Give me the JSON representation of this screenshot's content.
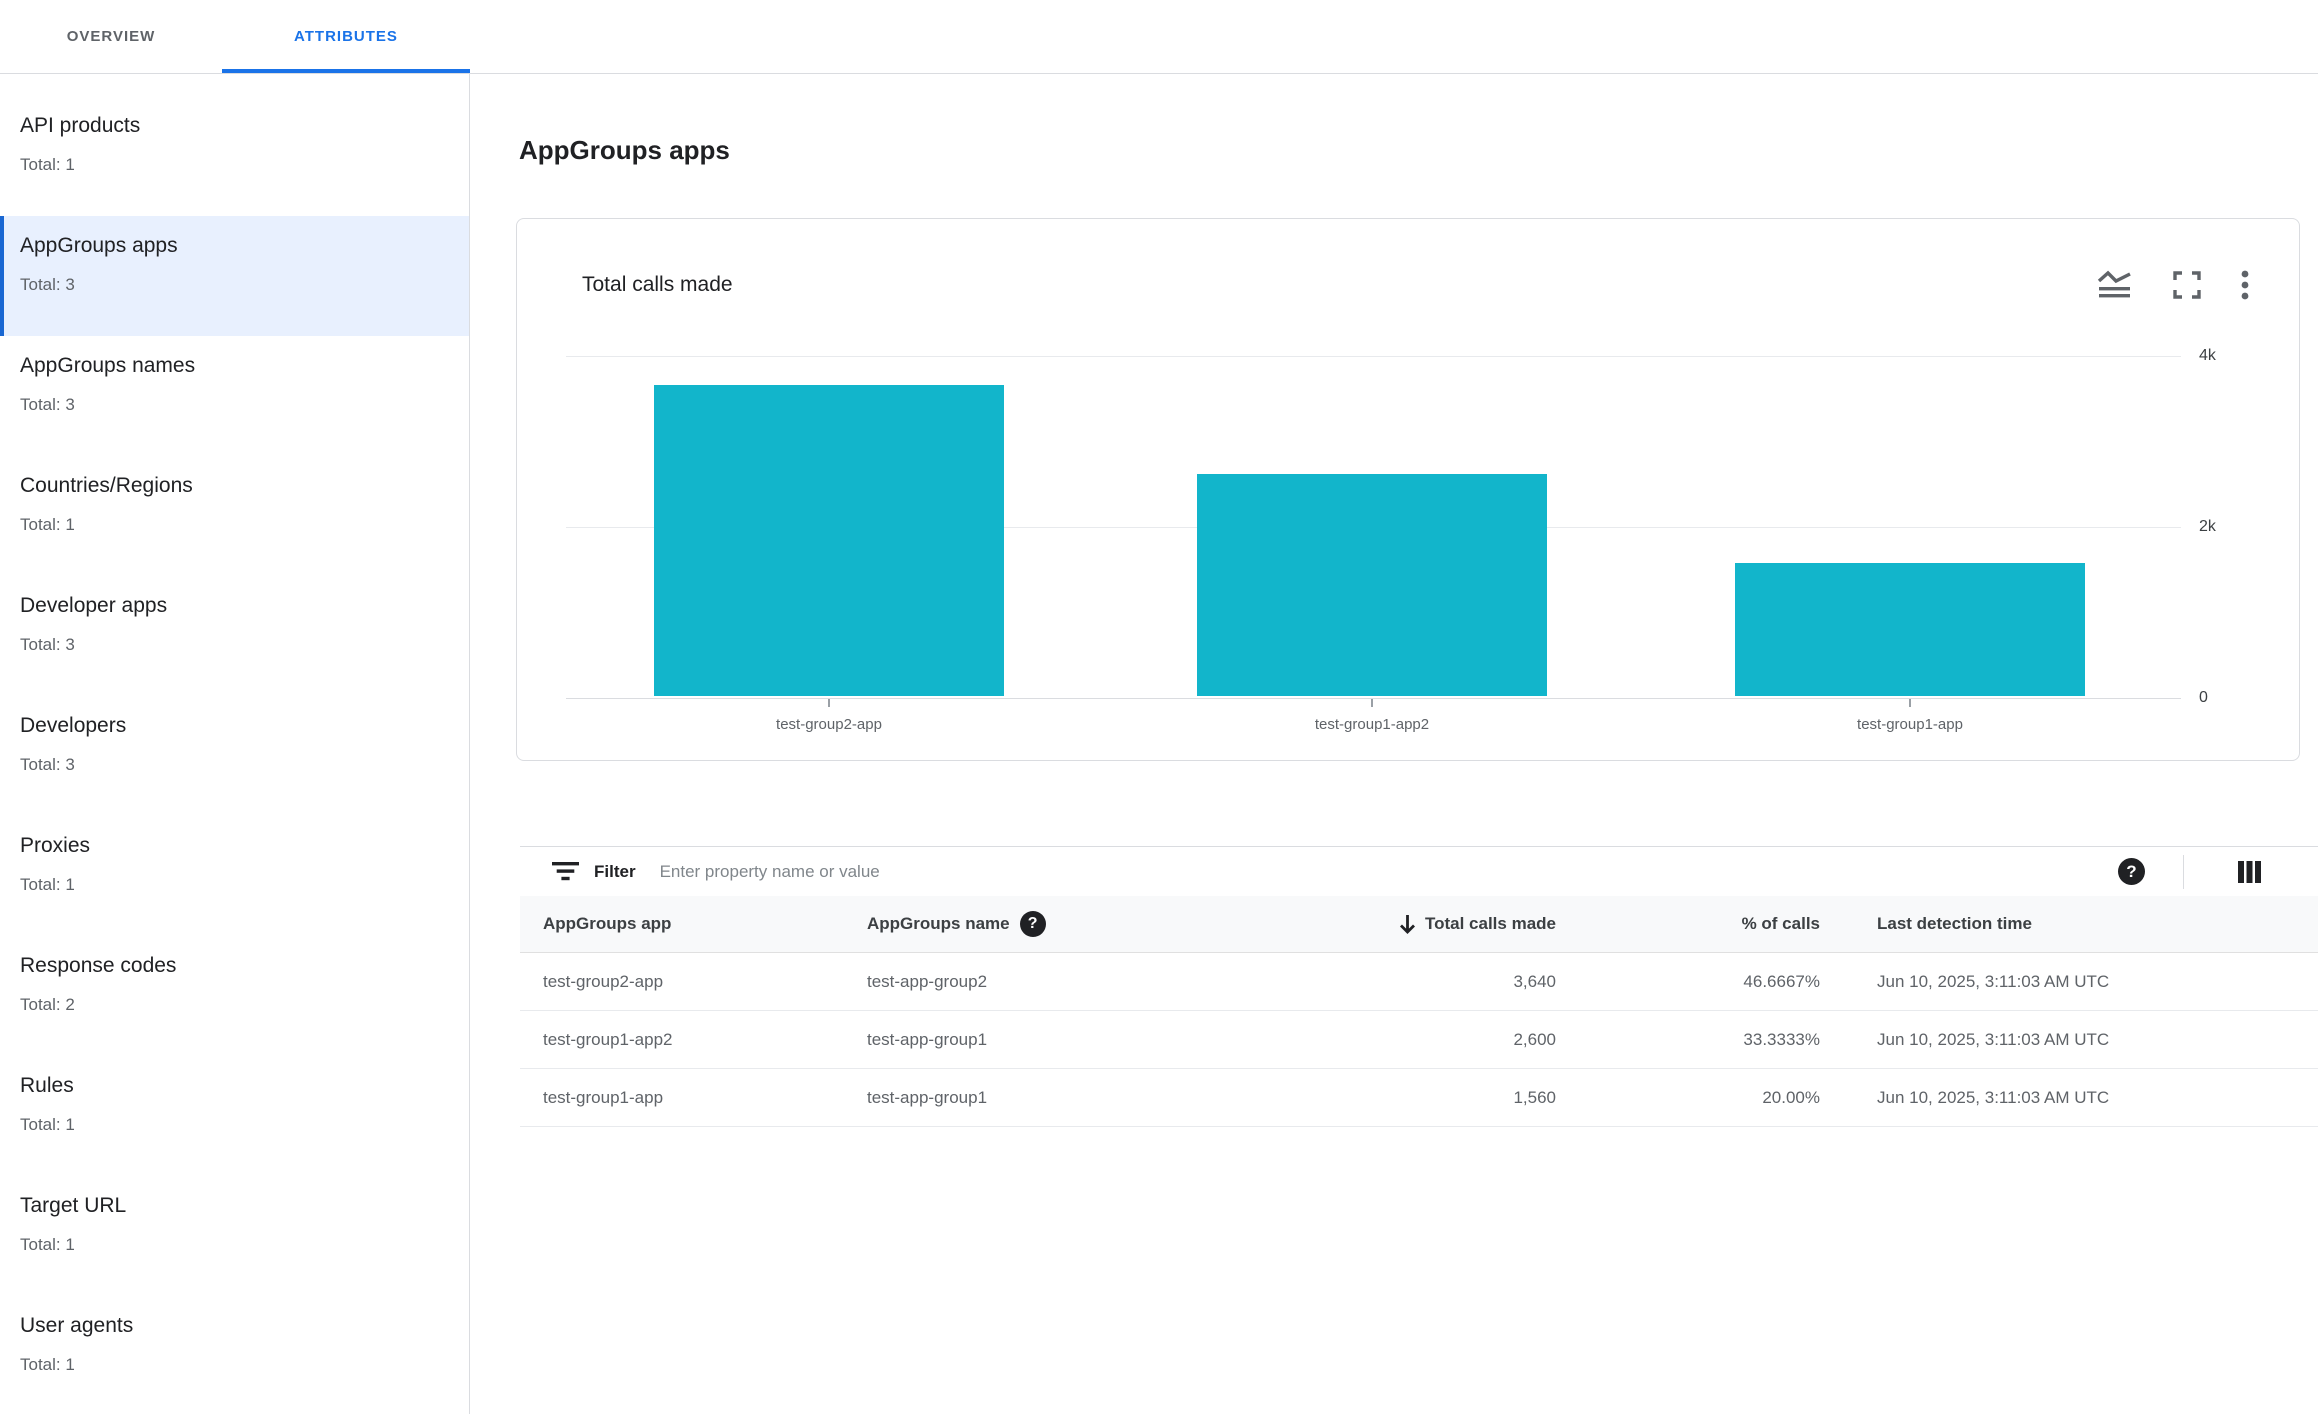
{
  "tabs": [
    {
      "label": "OVERVIEW",
      "active": false
    },
    {
      "label": "ATTRIBUTES",
      "active": true
    }
  ],
  "sidebar": {
    "items": [
      {
        "label": "API products",
        "total": "Total: 1",
        "selected": false
      },
      {
        "label": "AppGroups apps",
        "total": "Total: 3",
        "selected": true
      },
      {
        "label": "AppGroups names",
        "total": "Total: 3",
        "selected": false
      },
      {
        "label": "Countries/Regions",
        "total": "Total: 1",
        "selected": false
      },
      {
        "label": "Developer apps",
        "total": "Total: 3",
        "selected": false
      },
      {
        "label": "Developers",
        "total": "Total: 3",
        "selected": false
      },
      {
        "label": "Proxies",
        "total": "Total: 1",
        "selected": false
      },
      {
        "label": "Response codes",
        "total": "Total: 2",
        "selected": false
      },
      {
        "label": "Rules",
        "total": "Total: 1",
        "selected": false
      },
      {
        "label": "Target URL",
        "total": "Total: 1",
        "selected": false
      },
      {
        "label": "User agents",
        "total": "Total: 1",
        "selected": false
      }
    ]
  },
  "main": {
    "page_title": "AppGroups apps",
    "card": {
      "title": "Total calls made",
      "icons": [
        "chart-style-icon",
        "fullscreen-icon",
        "more-vert-icon"
      ]
    }
  },
  "chart_data": {
    "type": "bar",
    "title": "Total calls made",
    "categories": [
      "test-group2-app",
      "test-group1-app2",
      "test-group1-app"
    ],
    "values": [
      3640,
      2600,
      1560
    ],
    "xlabel": "",
    "ylabel": "",
    "ylim": [
      0,
      4000
    ],
    "yticks": [
      {
        "value": 4000,
        "label": "4k"
      },
      {
        "value": 2000,
        "label": "2k"
      },
      {
        "value": 0,
        "label": "0"
      }
    ],
    "y_axis_side": "right",
    "grid": "horizontal",
    "bar_color": "#12B5CB",
    "legend": "none"
  },
  "filter": {
    "label": "Filter",
    "placeholder": "Enter property name or value"
  },
  "table": {
    "columns": [
      {
        "label": "AppGroups app",
        "align": "left"
      },
      {
        "label": "AppGroups name",
        "align": "left",
        "help": true
      },
      {
        "label": "Total calls made",
        "align": "right",
        "sorted": "desc"
      },
      {
        "label": "% of calls",
        "align": "right"
      },
      {
        "label": "Last detection time",
        "align": "left"
      }
    ],
    "rows": [
      {
        "app": "test-group2-app",
        "name": "test-app-group2",
        "calls": "3,640",
        "pct": "46.6667%",
        "time": "Jun 10, 2025, 3:11:03 AM UTC"
      },
      {
        "app": "test-group1-app2",
        "name": "test-app-group1",
        "calls": "2,600",
        "pct": "33.3333%",
        "time": "Jun 10, 2025, 3:11:03 AM UTC"
      },
      {
        "app": "test-group1-app",
        "name": "test-app-group1",
        "calls": "1,560",
        "pct": "20.00%",
        "time": "Jun 10, 2025, 3:11:03 AM UTC"
      }
    ]
  },
  "colors": {
    "accent": "#1A73E8",
    "bar": "#12B5CB",
    "selected_item_bg": "#E8F0FE",
    "border": "#DADCE0",
    "table_header_bg": "#F8F9FA"
  }
}
